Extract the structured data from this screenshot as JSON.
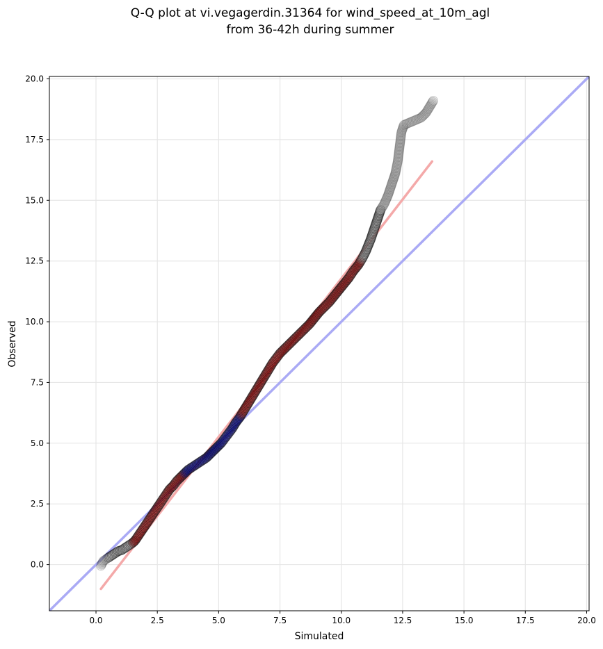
{
  "chart_data": {
    "type": "scatter",
    "title_line1": "Q-Q plot at vi.vegagerdin.31364 for wind_speed_at_10m_agl",
    "title_line2": "from 36-42h during summer",
    "xlabel": "Simulated",
    "ylabel": "Observed",
    "xlim": [
      -1.9,
      20.1
    ],
    "ylim": [
      -1.9,
      20.1
    ],
    "x_ticks": [
      0.0,
      2.5,
      5.0,
      7.5,
      10.0,
      12.5,
      15.0,
      17.5,
      20.0
    ],
    "y_ticks": [
      0.0,
      2.5,
      5.0,
      7.5,
      10.0,
      12.5,
      15.0,
      17.5,
      20.0
    ],
    "x_tick_labels": [
      "0.0",
      "2.5",
      "5.0",
      "7.5",
      "10.0",
      "12.5",
      "15.0",
      "17.5",
      "20.0"
    ],
    "y_tick_labels": [
      "0.0",
      "2.5",
      "5.0",
      "7.5",
      "10.0",
      "12.5",
      "15.0",
      "17.5",
      "20.0"
    ],
    "grid": true,
    "identity_line": {
      "from": [
        -1.9,
        -1.9
      ],
      "to": [
        20.1,
        20.1
      ],
      "color": "#aaaaf5"
    },
    "fit_line": {
      "from": [
        0.2,
        -1.0
      ],
      "to": [
        13.7,
        16.6
      ],
      "color": "#f4a9a9"
    },
    "highlight_colors": {
      "inner": "#000080",
      "middle": "#8b0000",
      "tail": "#888888"
    },
    "quantiles": [
      [
        0.2,
        -0.05
      ],
      [
        0.3,
        0.15
      ],
      [
        0.45,
        0.25
      ],
      [
        0.6,
        0.35
      ],
      [
        0.75,
        0.45
      ],
      [
        0.9,
        0.55
      ],
      [
        1.05,
        0.6
      ],
      [
        1.2,
        0.7
      ],
      [
        1.35,
        0.8
      ],
      [
        1.5,
        0.9
      ],
      [
        1.6,
        1.0
      ],
      [
        1.7,
        1.15
      ],
      [
        1.8,
        1.3
      ],
      [
        1.9,
        1.45
      ],
      [
        2.0,
        1.6
      ],
      [
        2.1,
        1.75
      ],
      [
        2.2,
        1.9
      ],
      [
        2.3,
        2.05
      ],
      [
        2.4,
        2.2
      ],
      [
        2.5,
        2.35
      ],
      [
        2.6,
        2.5
      ],
      [
        2.7,
        2.65
      ],
      [
        2.8,
        2.8
      ],
      [
        2.9,
        2.95
      ],
      [
        3.0,
        3.1
      ],
      [
        3.15,
        3.25
      ],
      [
        3.3,
        3.45
      ],
      [
        3.45,
        3.6
      ],
      [
        3.6,
        3.75
      ],
      [
        3.75,
        3.9
      ],
      [
        3.9,
        4.0
      ],
      [
        4.05,
        4.1
      ],
      [
        4.2,
        4.2
      ],
      [
        4.35,
        4.3
      ],
      [
        4.5,
        4.4
      ],
      [
        4.65,
        4.55
      ],
      [
        4.8,
        4.7
      ],
      [
        4.95,
        4.85
      ],
      [
        5.1,
        5.0
      ],
      [
        5.25,
        5.2
      ],
      [
        5.4,
        5.4
      ],
      [
        5.55,
        5.6
      ],
      [
        5.7,
        5.85
      ],
      [
        5.85,
        6.05
      ],
      [
        6.0,
        6.3
      ],
      [
        6.15,
        6.55
      ],
      [
        6.3,
        6.8
      ],
      [
        6.45,
        7.05
      ],
      [
        6.6,
        7.3
      ],
      [
        6.75,
        7.55
      ],
      [
        6.9,
        7.8
      ],
      [
        7.05,
        8.05
      ],
      [
        7.2,
        8.3
      ],
      [
        7.35,
        8.5
      ],
      [
        7.5,
        8.7
      ],
      [
        7.7,
        8.9
      ],
      [
        7.9,
        9.1
      ],
      [
        8.1,
        9.3
      ],
      [
        8.3,
        9.5
      ],
      [
        8.5,
        9.7
      ],
      [
        8.7,
        9.9
      ],
      [
        8.9,
        10.15
      ],
      [
        9.1,
        10.4
      ],
      [
        9.3,
        10.6
      ],
      [
        9.5,
        10.8
      ],
      [
        9.7,
        11.05
      ],
      [
        9.9,
        11.3
      ],
      [
        10.1,
        11.55
      ],
      [
        10.3,
        11.8
      ],
      [
        10.5,
        12.1
      ],
      [
        10.7,
        12.35
      ],
      [
        10.85,
        12.6
      ],
      [
        11.0,
        12.9
      ],
      [
        11.1,
        13.15
      ],
      [
        11.2,
        13.4
      ],
      [
        11.3,
        13.7
      ],
      [
        11.4,
        14.0
      ],
      [
        11.5,
        14.3
      ],
      [
        11.6,
        14.6
      ],
      [
        11.75,
        14.85
      ],
      [
        11.9,
        15.2
      ],
      [
        12.0,
        15.5
      ],
      [
        12.1,
        15.8
      ],
      [
        12.2,
        16.1
      ],
      [
        12.3,
        16.6
      ],
      [
        12.35,
        17.0
      ],
      [
        12.4,
        17.4
      ],
      [
        12.45,
        17.8
      ],
      [
        12.55,
        18.1
      ],
      [
        13.25,
        18.4
      ],
      [
        13.45,
        18.6
      ],
      [
        13.75,
        19.1
      ]
    ]
  }
}
